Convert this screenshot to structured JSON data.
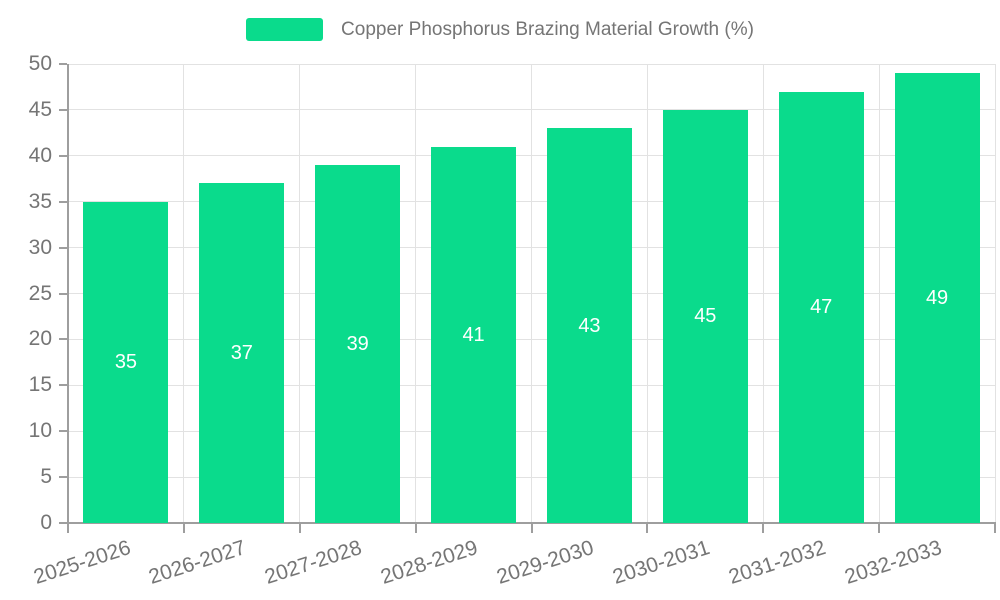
{
  "chart_data": {
    "type": "bar",
    "title": "Copper Phosphorus Brazing Material Growth (%)",
    "categories": [
      "2025-2026",
      "2026-2027",
      "2027-2028",
      "2028-2029",
      "2029-2030",
      "2030-2031",
      "2031-2032",
      "2032-2033"
    ],
    "values": [
      35,
      37,
      39,
      41,
      43,
      45,
      47,
      49
    ],
    "xlabel": "",
    "ylabel": "",
    "ylim": [
      0,
      50
    ],
    "ytick_step": 5,
    "ytick_labels": [
      "0",
      "5",
      "10",
      "15",
      "20",
      "25",
      "30",
      "35",
      "40",
      "45",
      "50"
    ],
    "grid": true,
    "legend_position": "top-center",
    "value_labels_position": "inside-center",
    "colors": {
      "bar": "#0adb8c",
      "value_label": "#ffffff",
      "axis_text": "#757575",
      "axis_line": "#9e9e9e",
      "grid_line": "#e2e2e2",
      "background": "#ffffff"
    }
  },
  "legend": {
    "label": "Copper Phosphorus Brazing Material Growth (%)"
  }
}
